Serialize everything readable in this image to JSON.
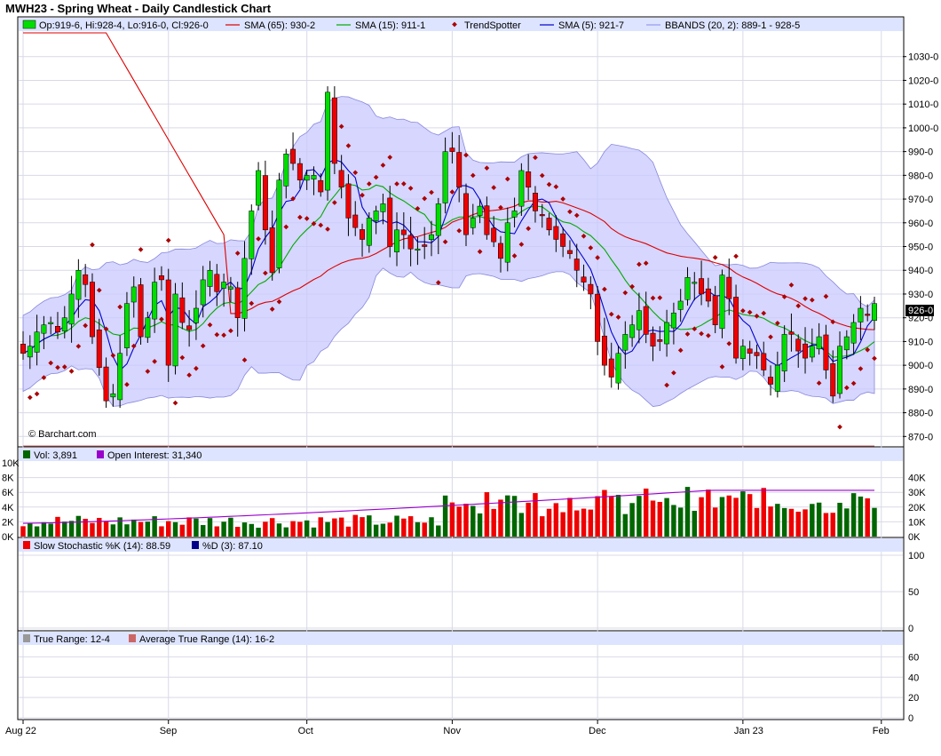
{
  "title": "MWH23 - Spring Wheat - Daily Candlestick Chart",
  "watermark": "© Barchart.com",
  "colors": {
    "up": "#00dd00",
    "down": "#ee0000",
    "band": "#c8c8ff",
    "sma65": "#dd0000",
    "sma15": "#00aa00",
    "sma5": "#0000cc",
    "trend": "#aa0000",
    "vol": "#006600",
    "oi": "#9900cc",
    "k": "#ee0000",
    "d": "#000088",
    "tr": "#999999",
    "atr": "#cc6666",
    "legendBg": "#dde4ff"
  },
  "legend": {
    "ohlc": "Op:919-6, Hi:928-4, Lo:916-0, Cl:926-0",
    "sma65": "SMA (65): 930-2",
    "sma15": "SMA (15): 911-1",
    "trend": "TrendSpotter",
    "sma5": "SMA (5): 921-7",
    "bbands": "BBANDS (20, 2): 889-1 - 928-5",
    "vol": "Vol: 3,891",
    "oi": "Open Interest: 31,340",
    "stochK": "Slow Stochastic %K (14): 88.59",
    "stochD": "%D (3): 87.10",
    "tr": "True Range: 12-4",
    "atr": "Average True Range (14): 16-2"
  },
  "last_price_label": "926-0",
  "chart_data": {
    "type": "candlestick",
    "months": [
      {
        "label": "Aug 22",
        "i": 0
      },
      {
        "label": "Sep",
        "i": 21
      },
      {
        "label": "Oct",
        "i": 41
      },
      {
        "label": "Nov",
        "i": 62
      },
      {
        "label": "Dec",
        "i": 83
      },
      {
        "label": "Jan 23",
        "i": 104
      },
      {
        "label": "Feb",
        "i": 124
      }
    ],
    "price_axis": {
      "min": 866,
      "max": 1040,
      "ticks": [
        870,
        880,
        890,
        900,
        910,
        920,
        930,
        940,
        950,
        960,
        970,
        980,
        990,
        1000,
        1010,
        1020,
        1030
      ],
      "tick_labels": [
        "870-0",
        "880-0",
        "890-0",
        "900-0",
        "910-0",
        "920-0",
        "930-0",
        "940-0",
        "950-0",
        "960-0",
        "970-0",
        "980-0",
        "990-0",
        "1000-0",
        "1010-0",
        "1020-0",
        "1030-0"
      ]
    },
    "volume_axis": {
      "min": 0,
      "max": 10000,
      "ticks": [
        0,
        2000,
        4000,
        6000,
        8000,
        10000
      ],
      "tick_labels": [
        "0K",
        "2K",
        "4K",
        "6K",
        "8K",
        "10K"
      ]
    },
    "oi_axis": {
      "min": 0,
      "max": 50000,
      "ticks": [
        0,
        10000,
        20000,
        30000,
        40000
      ],
      "tick_labels": [
        "0K",
        "10K",
        "20K",
        "30K",
        "40K"
      ]
    },
    "stoch_axis": {
      "min": 0,
      "max": 100,
      "ticks": [
        0,
        50,
        100
      ],
      "tick_labels": [
        "0",
        "50",
        "100"
      ]
    },
    "tr_axis": {
      "min": 0,
      "max": 70,
      "ticks": [
        0,
        20,
        40,
        60
      ],
      "tick_labels": [
        "0",
        "20",
        "40",
        "60"
      ]
    },
    "close": [
      905,
      908,
      914,
      917,
      918,
      914,
      920,
      930,
      940,
      934,
      912,
      899,
      885,
      888,
      905,
      926,
      933,
      912,
      920,
      935,
      936,
      900,
      930,
      918,
      915,
      924,
      936,
      940,
      931,
      935,
      933,
      920,
      945,
      965,
      982,
      957,
      939,
      978,
      989,
      985,
      978,
      980,
      980,
      973,
      1015,
      985,
      975,
      962,
      958,
      953,
      962,
      965,
      968,
      950,
      957,
      955,
      949,
      949,
      950,
      955,
      968,
      990,
      990,
      975,
      955,
      962,
      967,
      955,
      952,
      945,
      960,
      965,
      982,
      975,
      965,
      963,
      957,
      953,
      950,
      947,
      940,
      935,
      930,
      910,
      900,
      895,
      905,
      913,
      917,
      923,
      913,
      908,
      910,
      918,
      922,
      927,
      937,
      935,
      930,
      927,
      917,
      938,
      928,
      903,
      908,
      905,
      904,
      898,
      892,
      900,
      913,
      913,
      906,
      903,
      908,
      912,
      898,
      887,
      908,
      912,
      918,
      924,
      921,
      926
    ],
    "ohlc_note": "per-session OHLC derived from close with visible wick extents",
    "sma65_end": 930.2,
    "sma15_end": 911.1,
    "sma5_end": 921.7,
    "bb_upper_end": 928.5,
    "bb_lower_end": 889.1,
    "volume_last": 3891,
    "open_interest_last": 31340,
    "stoch_k_last": 88.59,
    "stoch_d_last": 87.1,
    "true_range_last": 12.4,
    "atr_last": 16.2
  }
}
